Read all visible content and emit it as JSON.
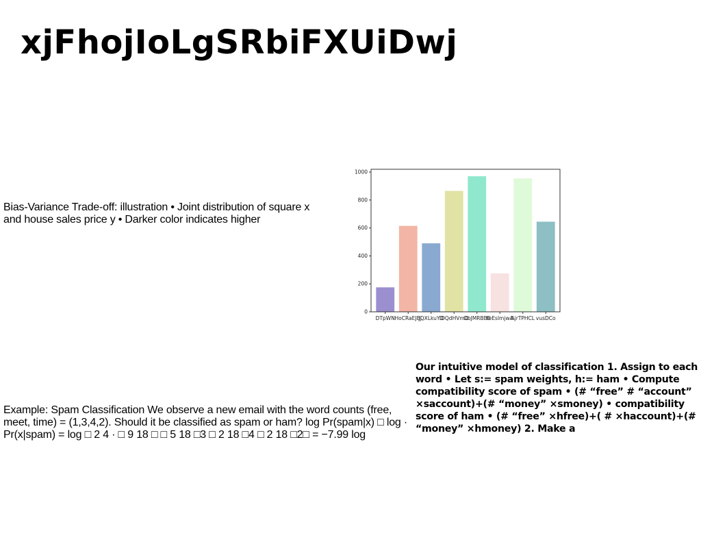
{
  "slide": {
    "title": "xjFhojIoLgSRbiFXUiDwj",
    "bias_text": "Bias-Variance Trade-off: illustration • Joint distribution of square x and house sales price y • Darker color indicates higher",
    "spam_text": "Example: Spam Classification We observe a new email with the word counts (free, meet, time) = (1,3,4,2). Should it be classified as spam or ham? log Pr(spam|x) □ log · Pr(x|spam) = log □ 2 4 · □ 9 18 □ □ 5 18 □3 □ 2 18 □4 □ 2 18 □2□ = −7.99 log",
    "intuitive_text": "Our intuitive model of classification 1. Assign to each word • Let s:= spam weights, h:= ham • Compute compatibility score of spam • (# “free” # “account” ×saccount)+(# “money” ×smoney) • compatibility score of ham • (# “free” ×hfree)+( # ×haccount)+(# “money” ×hmoney) 2. Make a"
  },
  "chart_data": {
    "type": "bar",
    "categories": [
      "DTpWN",
      "HoCRaEJBJ",
      "JQXLkuYO",
      "IDQdHVmO",
      "ObJMRBBE",
      "teEslmjwA",
      "AjrTPHCL",
      "vusDCo"
    ],
    "values": [
      175,
      615,
      490,
      865,
      970,
      275,
      955,
      645
    ],
    "colors": [
      "#9b8fd0",
      "#f3b5a5",
      "#8aa9d1",
      "#e0e3a3",
      "#8fe8cd",
      "#f7e1e1",
      "#dffad8",
      "#8dbfc4"
    ],
    "ylim": [
      0,
      1020
    ],
    "yticks": [
      0,
      200,
      400,
      600,
      800,
      1000
    ],
    "title": "",
    "xlabel": "",
    "ylabel": "",
    "grid": false
  }
}
